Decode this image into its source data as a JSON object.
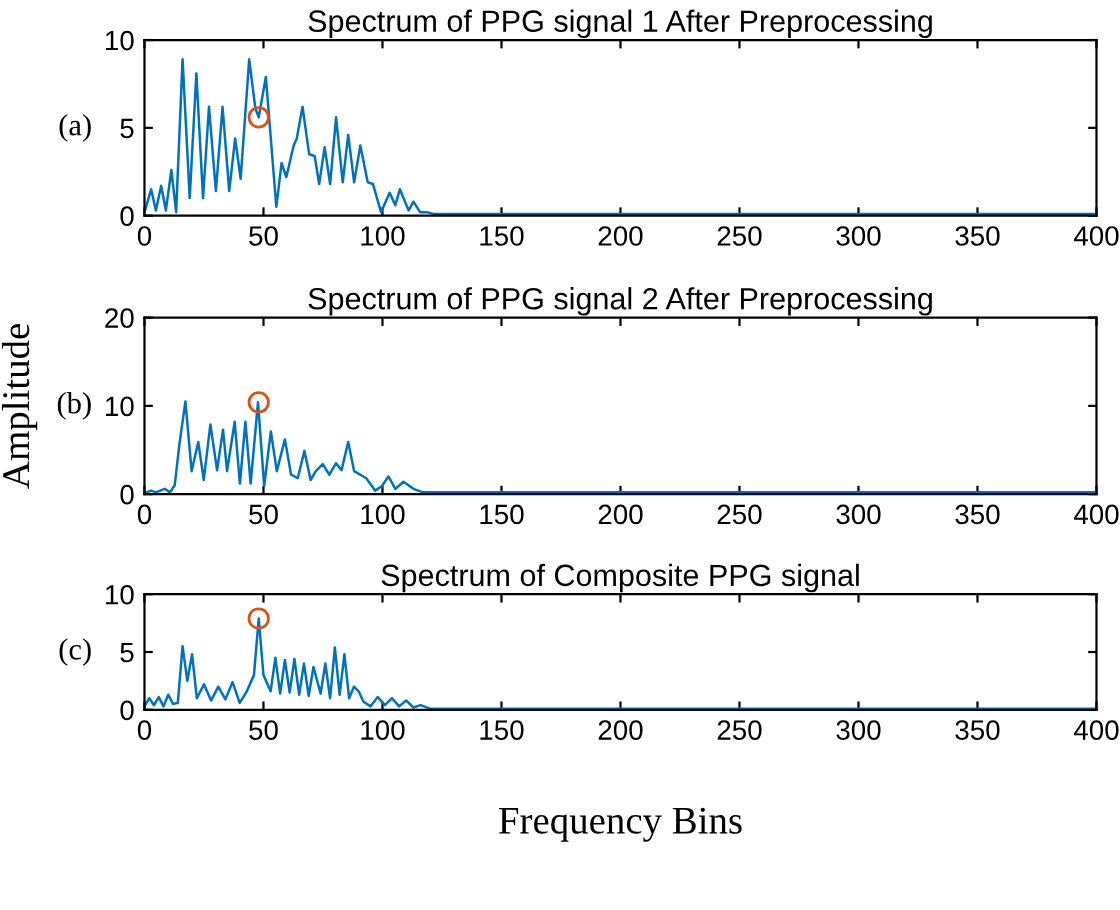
{
  "chart_data": [
    {
      "type": "line",
      "title": "Spectrum of PPG signal 1 After Preprocessing",
      "annotations": [
        "(a)"
      ],
      "xlim": [
        0,
        400
      ],
      "xticks": [
        0,
        50,
        100,
        150,
        200,
        250,
        300,
        350,
        400
      ],
      "ylim": [
        0,
        10
      ],
      "yticks": [
        0,
        5,
        10
      ],
      "grid": false,
      "series": [
        {
          "color": "#0072bd",
          "x": [
            0,
            2.8,
            4.8,
            7,
            9,
            11.3,
            13.3,
            16,
            19,
            21.8,
            24.6,
            27.1,
            30,
            32.8,
            35.6,
            38.1,
            40.4,
            44,
            46.6,
            48,
            51,
            55.4,
            57.6,
            59.6,
            62.7,
            64,
            66.4,
            69.2,
            71.5,
            73.4,
            75.7,
            78,
            80.5,
            83.3,
            85.6,
            88.1,
            90.7,
            93.8,
            96,
            99.4,
            103,
            105.4,
            107.3,
            111,
            113,
            115.8,
            118.6,
            121.5,
            150,
            200,
            300,
            400
          ],
          "values": [
            0.2,
            1.5,
            0.3,
            1.7,
            0.3,
            2.6,
            0.2,
            8.9,
            1.0,
            8.1,
            1.0,
            6.2,
            1.4,
            6.2,
            1.4,
            4.4,
            2.1,
            8.9,
            6.1,
            5.6,
            7.9,
            0.5,
            3.0,
            2.2,
            4.0,
            4.4,
            6.2,
            3.5,
            3.4,
            1.8,
            3.9,
            1.8,
            5.6,
            1.9,
            4.6,
            1.9,
            4.0,
            1.9,
            1.8,
            0.2,
            1.3,
            0.6,
            1.5,
            0.3,
            0.8,
            0.2,
            0.2,
            0.1,
            0.1,
            0.1,
            0.1,
            0.1
          ]
        },
        {
          "type": "scatter",
          "color": "#d95319",
          "marker": "circle",
          "x": [
            48
          ],
          "values": [
            5.6
          ]
        }
      ]
    },
    {
      "type": "line",
      "title": "Spectrum of PPG signal 2 After Preprocessing",
      "ylabel": "Amplitude",
      "annotations": [
        "(b)"
      ],
      "xlim": [
        0,
        400
      ],
      "xticks": [
        0,
        50,
        100,
        150,
        200,
        250,
        300,
        350,
        400
      ],
      "ylim": [
        0,
        20
      ],
      "yticks": [
        0,
        10,
        20
      ],
      "grid": false,
      "series": [
        {
          "color": "#0072bd",
          "x": [
            0,
            2.8,
            4.8,
            8.5,
            10.7,
            12.7,
            14.7,
            17.2,
            19.8,
            22.6,
            24.9,
            27.7,
            30.5,
            33,
            34.7,
            37.9,
            40.1,
            42.4,
            44.6,
            47.7,
            50.3,
            53.1,
            55.6,
            59,
            61.6,
            64.4,
            67.2,
            69.8,
            72,
            74.9,
            77.7,
            80.5,
            82.8,
            85.6,
            88.1,
            93.2,
            96.9,
            99.7,
            102.5,
            105.4,
            108.8,
            113,
            117,
            130,
            200,
            300,
            400
          ],
          "values": [
            0.1,
            0.4,
            0.2,
            0.6,
            0.2,
            1.0,
            5.7,
            10.5,
            2.6,
            5.9,
            1.6,
            7.9,
            2.7,
            7.3,
            2.6,
            8.2,
            1.2,
            8.2,
            1.2,
            10.4,
            0.9,
            7.1,
            2.6,
            6.2,
            2.2,
            1.8,
            4.9,
            1.6,
            2.6,
            3.4,
            2.2,
            3.5,
            2.7,
            5.9,
            2.6,
            1.8,
            0.4,
            0.9,
            2.0,
            0.6,
            1.4,
            0.6,
            0.2,
            0.2,
            0.2,
            0.2,
            0.2
          ]
        },
        {
          "type": "scatter",
          "color": "#d95319",
          "marker": "circle",
          "x": [
            48
          ],
          "values": [
            10.4
          ]
        }
      ]
    },
    {
      "type": "line",
      "title": "Spectrum of Composite PPG signal",
      "xlabel": "Frequency Bins",
      "annotations": [
        "(c)"
      ],
      "xlim": [
        0,
        400
      ],
      "xticks": [
        0,
        50,
        100,
        150,
        200,
        250,
        300,
        350,
        400
      ],
      "ylim": [
        0,
        10
      ],
      "yticks": [
        0,
        5,
        10
      ],
      "grid": false,
      "series": [
        {
          "color": "#0072bd",
          "x": [
            0,
            2,
            4,
            6,
            8,
            10,
            12,
            14,
            16,
            18,
            20,
            22,
            25,
            28,
            31,
            34,
            37,
            40,
            43,
            46,
            48,
            50,
            53,
            55,
            57,
            59,
            61,
            63,
            65,
            67,
            69,
            71,
            74,
            76,
            78,
            80,
            82,
            84,
            86,
            88,
            90,
            92,
            95,
            98,
            101,
            104,
            107,
            110,
            113,
            116,
            120,
            150,
            200,
            300,
            400
          ],
          "values": [
            0.3,
            1.0,
            0.4,
            1.1,
            0.3,
            1.3,
            0.5,
            0.6,
            5.5,
            2.5,
            4.8,
            1.0,
            2.2,
            0.8,
            2.0,
            0.9,
            2.4,
            0.6,
            1.6,
            3.0,
            7.9,
            3.0,
            1.6,
            4.5,
            1.4,
            4.3,
            1.5,
            4.4,
            1.3,
            4.0,
            1.2,
            3.7,
            1.4,
            4.0,
            1.0,
            5.4,
            1.3,
            4.8,
            1.0,
            2.0,
            1.6,
            0.7,
            0.3,
            1.1,
            0.4,
            1.0,
            0.3,
            0.8,
            0.2,
            0.4,
            0.1,
            0.1,
            0.1,
            0.1,
            0.1
          ]
        },
        {
          "type": "scatter",
          "color": "#d95319",
          "marker": "circle",
          "x": [
            48
          ],
          "values": [
            7.9
          ]
        }
      ]
    }
  ]
}
